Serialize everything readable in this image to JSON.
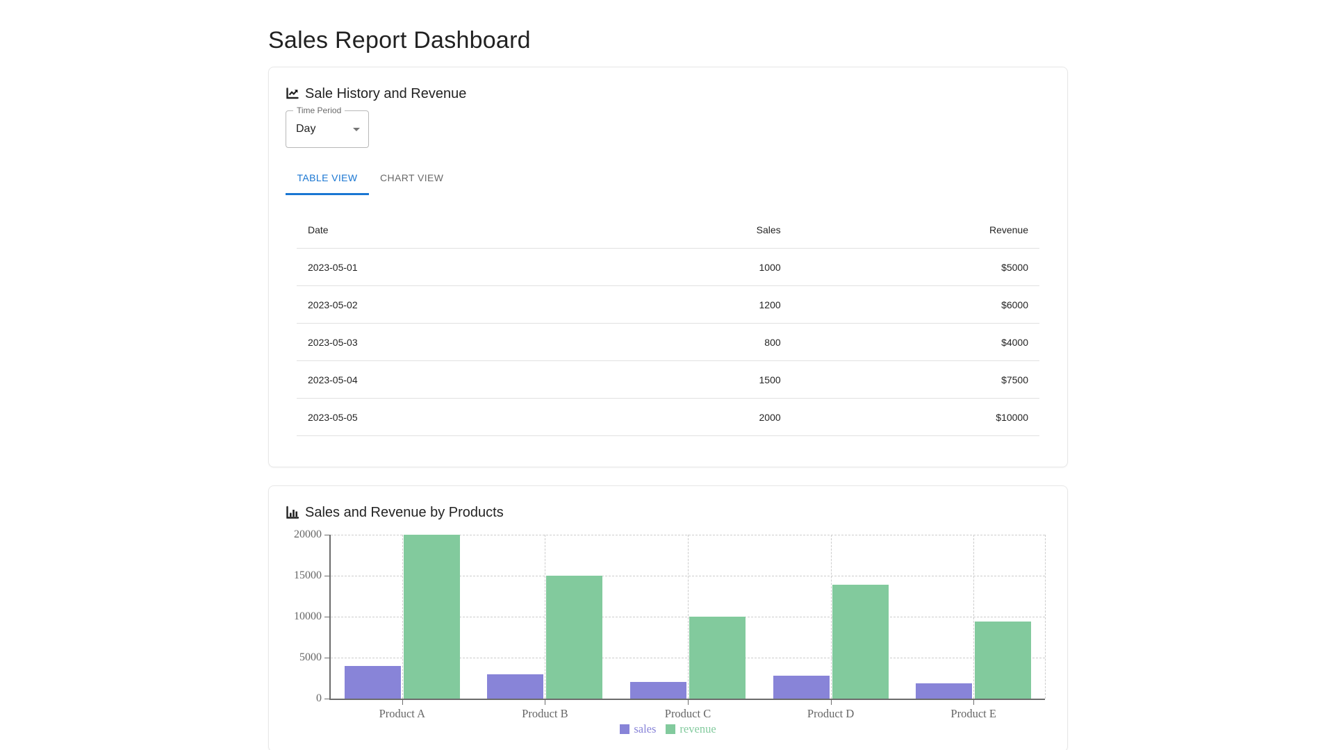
{
  "page": {
    "title": "Sales Report Dashboard"
  },
  "history_card": {
    "title": "Sale History and Revenue",
    "icon": "chart-line-icon",
    "time_period": {
      "label": "Time Period",
      "value": "Day"
    },
    "tabs": [
      {
        "label": "TABLE VIEW",
        "active": true
      },
      {
        "label": "CHART VIEW",
        "active": false
      }
    ],
    "table": {
      "columns": [
        "Date",
        "Sales",
        "Revenue"
      ],
      "rows": [
        {
          "date": "2023-05-01",
          "sales": "1000",
          "revenue": "$5000"
        },
        {
          "date": "2023-05-02",
          "sales": "1200",
          "revenue": "$6000"
        },
        {
          "date": "2023-05-03",
          "sales": "800",
          "revenue": "$4000"
        },
        {
          "date": "2023-05-04",
          "sales": "1500",
          "revenue": "$7500"
        },
        {
          "date": "2023-05-05",
          "sales": "2000",
          "revenue": "$10000"
        }
      ]
    }
  },
  "products_card": {
    "title": "Sales and Revenue by Products",
    "icon": "chart-column-icon"
  },
  "chart_data": {
    "type": "bar",
    "title": "Sales and Revenue by Products",
    "categories": [
      "Product A",
      "Product B",
      "Product C",
      "Product D",
      "Product E"
    ],
    "series": [
      {
        "name": "sales",
        "color": "#8884d8",
        "values": [
          4000,
          3000,
          2000,
          2780,
          1890
        ]
      },
      {
        "name": "revenue",
        "color": "#82ca9d",
        "values": [
          20000,
          15000,
          10000,
          13900,
          9450
        ]
      }
    ],
    "xlabel": "",
    "ylabel": "",
    "ylim": [
      0,
      20000
    ],
    "yticks": [
      0,
      5000,
      10000,
      15000,
      20000
    ],
    "grid": "dashed",
    "legend_position": "bottom-center",
    "axis_color": "#6b6b6b",
    "grid_color": "#cccccc",
    "tick_label_color": "#666666"
  },
  "colors": {
    "primary": "#1976d2",
    "text_primary": "rgba(0,0,0,0.87)",
    "text_secondary": "rgba(0,0,0,0.6)",
    "divider": "#e0e0e0",
    "sales_bar": "#8884d8",
    "revenue_bar": "#82ca9d"
  }
}
